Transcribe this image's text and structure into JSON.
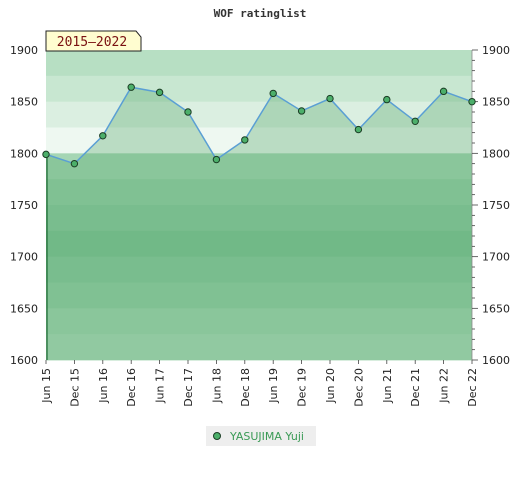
{
  "chart_data": {
    "type": "area",
    "title": "WOF ratinglist",
    "badge": "2015–2022",
    "xlabel": "",
    "ylabel": "",
    "categories": [
      "Jun 15",
      "Dec 15",
      "Jun 16",
      "Dec 16",
      "Jun 17",
      "Dec 17",
      "Jun 18",
      "Dec 18",
      "Jun 19",
      "Dec 19",
      "Jun 20",
      "Dec 20",
      "Jun 21",
      "Dec 21",
      "Jun 22",
      "Dec 22"
    ],
    "series": [
      {
        "name": "YASUJIMA Yuji",
        "values": [
          1799,
          1790,
          1817,
          1864,
          1859,
          1840,
          1794,
          1813,
          1858,
          1841,
          1853,
          1823,
          1852,
          1831,
          1860,
          1850
        ],
        "color": "#5aa06e"
      }
    ],
    "ylim": [
      1600,
      1900
    ],
    "yticks": [
      1600,
      1650,
      1700,
      1750,
      1800,
      1850,
      1900
    ],
    "legend_position": "bottom-center",
    "colors": {
      "line": "#5a9fd4",
      "area": "#7bbf8e",
      "marker": "#4caf6a",
      "legend_text": "#3a9a55"
    }
  }
}
